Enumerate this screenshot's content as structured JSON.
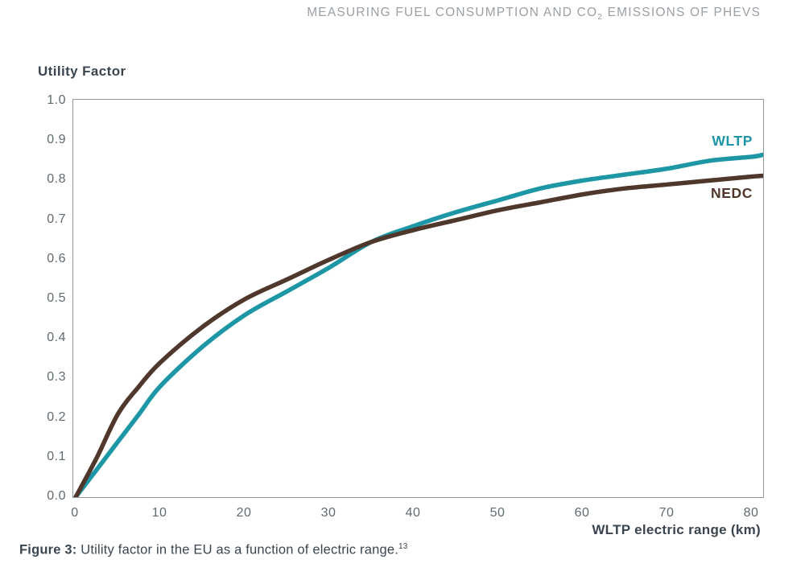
{
  "header": {
    "part1": "MEASURING FUEL CONSUMPTION AND CO",
    "sub": "2",
    "part2": " EMISSIONS OF PHEVS"
  },
  "chart": {
    "y_axis_title": "Utility Factor",
    "x_axis_title": "WLTP electric range (km)",
    "wltp_label": "WLTP",
    "nedc_label": "NEDC"
  },
  "caption": {
    "label": "Figure 3:",
    "text": " Utility factor in the EU as a function of electric range.",
    "superscript": "13"
  },
  "colors": {
    "teal": "#1d96a5",
    "brown": "#4f372b",
    "header_gray": "#9aa0a5",
    "tick_gray": "#606b71",
    "dark_slate": "#3b4550",
    "plot_border": "#8e989d"
  },
  "chart_data": {
    "type": "line",
    "title": "Utility Factor",
    "xlabel": "WLTP electric range (km)",
    "ylabel": "Utility Factor",
    "xlim": [
      0,
      81.3
    ],
    "ylim": [
      0.0,
      1.0
    ],
    "grid": false,
    "legend_position": "labels at right end of lines",
    "xticks": [
      0,
      10,
      20,
      30,
      40,
      50,
      60,
      70,
      80
    ],
    "yticks": [
      "1.0",
      "0.9",
      "0.8",
      "0.7",
      "0.6",
      "0.5",
      "0.4",
      "0.3",
      "0.2",
      "0.1",
      "0.0"
    ],
    "x": [
      0,
      2.5,
      5,
      7.5,
      10,
      15,
      20,
      25,
      30,
      35,
      40,
      45,
      50,
      55,
      60,
      65,
      70,
      75,
      80,
      81.3
    ],
    "series": [
      {
        "name": "WLTP",
        "color": "#1d96a5",
        "values": [
          0.0,
          0.07,
          0.14,
          0.21,
          0.28,
          0.38,
          0.46,
          0.52,
          0.58,
          0.645,
          0.685,
          0.72,
          0.75,
          0.78,
          0.8,
          0.815,
          0.83,
          0.85,
          0.86,
          0.865
        ]
      },
      {
        "name": "NEDC",
        "color": "#4f372b",
        "values": [
          0.0,
          0.1,
          0.21,
          0.28,
          0.34,
          0.43,
          0.5,
          0.55,
          0.6,
          0.645,
          0.675,
          0.7,
          0.725,
          0.745,
          0.765,
          0.78,
          0.79,
          0.8,
          0.81,
          0.812
        ]
      }
    ]
  }
}
